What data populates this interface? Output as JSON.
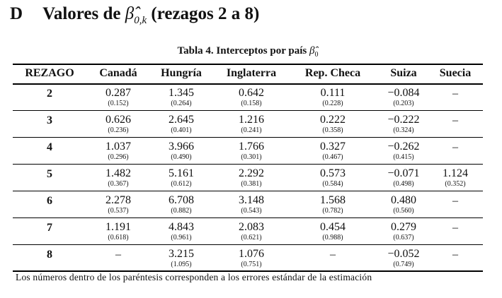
{
  "heading": {
    "letter": "D",
    "title": "Valores de",
    "symbol": "β̂",
    "subscript": "0,k",
    "rest": "(rezagos 2 a 8)"
  },
  "caption": {
    "text": "Tabla 4. Interceptos por país",
    "symbol": "β̂",
    "subscript": "0"
  },
  "table": {
    "headers": [
      "REZAGO",
      "Canadá",
      "Hungría",
      "Inglaterra",
      "Rep. Checa",
      "Suiza",
      "Suecia"
    ],
    "rows": [
      {
        "rezago": "2",
        "cells": [
          {
            "value": "0.287",
            "se": "(0.152)"
          },
          {
            "value": "1.345",
            "se": "(0.264)"
          },
          {
            "value": "0.642",
            "se": "(0.158)"
          },
          {
            "value": "0.111",
            "se": "(0.228)"
          },
          {
            "value": "−0.084",
            "se": "(0.203)"
          },
          "–"
        ]
      },
      {
        "rezago": "3",
        "cells": [
          {
            "value": "0.626",
            "se": "(0.236)"
          },
          {
            "value": "2.645",
            "se": "(0.401)"
          },
          {
            "value": "1.216",
            "se": "(0.241)"
          },
          {
            "value": "0.222",
            "se": "(0.358)"
          },
          {
            "value": "−0.222",
            "se": "(0.324)"
          },
          "–"
        ]
      },
      {
        "rezago": "4",
        "cells": [
          {
            "value": "1.037",
            "se": "(0.296)"
          },
          {
            "value": "3.966",
            "se": "(0.490)"
          },
          {
            "value": "1.766",
            "se": "(0.301)"
          },
          {
            "value": "0.327",
            "se": "(0.467)"
          },
          {
            "value": "−0.262",
            "se": "(0.415)"
          },
          "–"
        ]
      },
      {
        "rezago": "5",
        "cells": [
          {
            "value": "1.482",
            "se": "(0.367)"
          },
          {
            "value": "5.161",
            "se": "(0.612)"
          },
          {
            "value": "2.292",
            "se": "(0.381)"
          },
          {
            "value": "0.573",
            "se": "(0.584)"
          },
          {
            "value": "−0.071",
            "se": "(0.498)"
          },
          {
            "value": "1.124",
            "se": "(0.352)"
          }
        ]
      },
      {
        "rezago": "6",
        "cells": [
          {
            "value": "2.278",
            "se": "(0.537)"
          },
          {
            "value": "6.708",
            "se": "(0.882)"
          },
          {
            "value": "3.148",
            "se": "(0.543)"
          },
          {
            "value": "1.568",
            "se": "(0.782)"
          },
          {
            "value": "0.480",
            "se": "(0.560)"
          },
          "–"
        ]
      },
      {
        "rezago": "7",
        "cells": [
          {
            "value": "1.191",
            "se": "(0.618)"
          },
          {
            "value": "4.843",
            "se": "(0.961)"
          },
          {
            "value": "2.083",
            "se": "(0.621)"
          },
          {
            "value": "0.454",
            "se": "(0.988)"
          },
          {
            "value": "0.279",
            "se": "(0.637)"
          },
          "–"
        ]
      },
      {
        "rezago": "8",
        "cells": [
          "–",
          {
            "value": "3.215",
            "se": "(1.095)"
          },
          {
            "value": "1.076",
            "se": "(0.751)"
          },
          "–",
          {
            "value": "−0.052",
            "se": "(0.749)"
          },
          "–"
        ]
      }
    ]
  },
  "footnote": "Los números dentro de los paréntesis corresponden a los errores estándar de la estimación"
}
